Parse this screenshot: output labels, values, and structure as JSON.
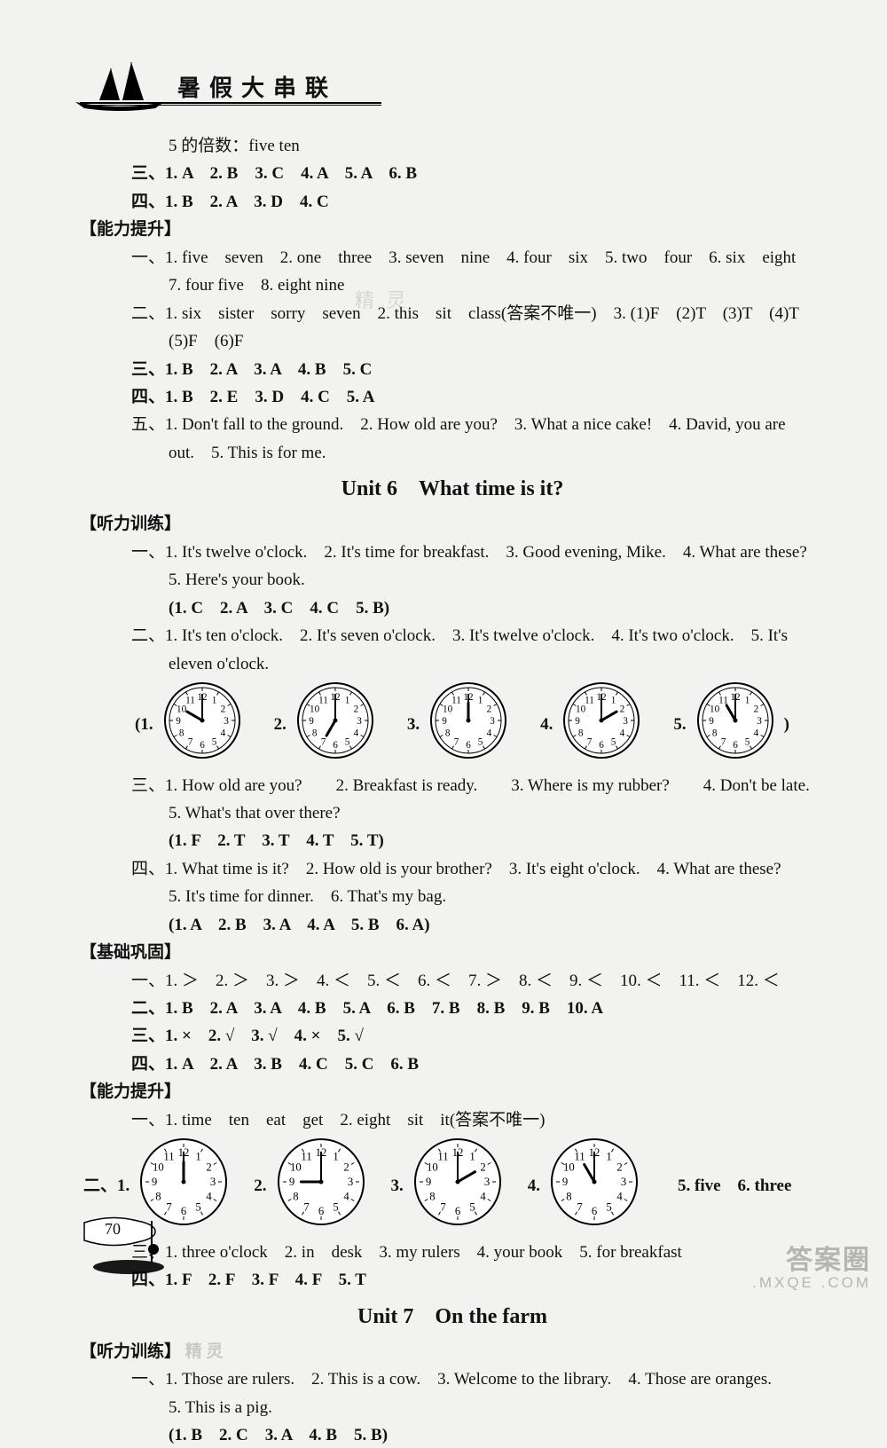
{
  "header": {
    "title": "暑假大串联"
  },
  "top": {
    "l1": "5 的倍数：five ten",
    "san": "三、1. A　2. B　3. C　4. A　5. A　6. B",
    "si": "四、1. B　2. A　3. D　4. C"
  },
  "ability1": {
    "label": "【能力提升】",
    "yi_a": "一、1. five　seven　2. one　three　3. seven　nine　4. four　six　5. two　four　6. six　eight",
    "yi_b": "7. four five　8. eight nine",
    "er_a": "二、1. six　sister　sorry　seven　2. this　sit　class(答案不唯一)　3. (1)F　(2)T　(3)T　(4)T",
    "er_b": "(5)F　(6)F",
    "san": "三、1. B　2. A　3. A　4. B　5. C",
    "si": "四、1. B　2. E　3. D　4. C　5. A",
    "wu_a": "五、1. Don't fall to the ground.　2. How old are you?　3. What a nice cake!　4. David, you are",
    "wu_b": "out.　5. This is for me."
  },
  "unit6": {
    "title": "Unit 6　What time is it?",
    "listen_label": "【听力训练】",
    "yi_a": "一、1. It's twelve o'clock.　2. It's time for breakfast.　3. Good evening, Mike.　4. What are these?",
    "yi_b": "5. Here's your book.",
    "yi_c": "(1. C　2. A　3. C　4. C　5. B)",
    "er_a": "二、1. It's ten o'clock.　2. It's seven o'clock.　3. It's twelve o'clock.　4. It's two o'clock.　5. It's",
    "er_b": "eleven o'clock.",
    "clocks1": [
      {
        "label": "(1.",
        "h": 10,
        "m": 0
      },
      {
        "label": "2.",
        "h": 7,
        "m": 0
      },
      {
        "label": "3.",
        "h": 12,
        "m": 0
      },
      {
        "label": "4.",
        "h": 2,
        "m": 0
      },
      {
        "label": "5.",
        "h": 11,
        "m": 0
      }
    ],
    "clock1_tail": ")",
    "san_a": "三、1. How old are you?　　2. Breakfast is ready.　　3. Where is my rubber?　　4. Don't be late.",
    "san_b": "5. What's that over there?",
    "san_c": "(1. F　2. T　3. T　4. T　5. T)",
    "si_a": "四、1. What time is it?　2. How old is your brother?　3. It's eight o'clock.　4. What are these?",
    "si_b": "5. It's time for dinner.　6. That's my bag.",
    "si_c": "(1. A　2. B　3. A　4. A　5. B　6. A)",
    "basic_label": "【基础巩固】",
    "b_yi": "一、1. ＞　2. ＞　3. ＞　4. ＜　5. ＜　6. ＜　7. ＞　8. ＜　9. ＜　10. ＜　11. ＜　12. ＜",
    "b_er": "二、1. B　2. A　3. A　4. B　5. A　6. B　7. B　8. B　9. B　10. A",
    "b_san": "三、1. ×　2. √　3. √　4. ×　5. √",
    "b_si": "四、1. A　2. A　3. B　4. C　5. C　6. B",
    "ab_label": "【能力提升】",
    "a_yi": "一、1. time　ten　eat　get　2. eight　sit　it(答案不唯一)",
    "clocks2_lead": "二、1.",
    "clocks2": [
      {
        "label": "",
        "h": 12,
        "m": 0
      },
      {
        "label": "2.",
        "h": 9,
        "m": 0
      },
      {
        "label": "3.",
        "h": 2,
        "m": 0
      },
      {
        "label": "4.",
        "h": 11,
        "m": 0
      }
    ],
    "clocks2_tail": "　5. five　6. three",
    "a_san": "三、1. three o'clock　2. in　desk　3. my rulers　4. your book　5. for breakfast",
    "a_si": "四、1. F　2. F　3. F　4. F　5. T"
  },
  "unit7": {
    "title": "Unit 7　On the farm",
    "listen_label": "【听力训练】",
    "yi_a": "一、1. Those are rulers.　2. This is a cow.　3. Welcome to the library.　4. Those are oranges.",
    "yi_b": "5. This is a pig.",
    "yi_c": "(1. B　2. C　3. A　4. B　5. B)"
  },
  "page_number": "70",
  "watermark_mid1": "精 灵",
  "watermark_bl": "精 灵",
  "wm_big": "答案圈",
  "wm_small": ".MXQE .COM",
  "clock_style": {
    "size": 86,
    "size2": 98,
    "stroke": "#000",
    "face": "#fff",
    "tick_len": 6,
    "hour_len": 20,
    "min_len": 30,
    "border_w": 2
  }
}
